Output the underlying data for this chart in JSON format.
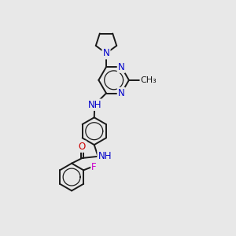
{
  "bg": "#e8e8e8",
  "bond_color": "#1a1a1a",
  "bond_lw": 1.4,
  "N_color": "#0000cc",
  "O_color": "#cc0000",
  "F_color": "#cc00cc",
  "C_color": "#1a1a1a",
  "fs": 8.5,
  "xlim": [
    -1.5,
    5.5
  ],
  "ylim": [
    -5.5,
    5.5
  ]
}
